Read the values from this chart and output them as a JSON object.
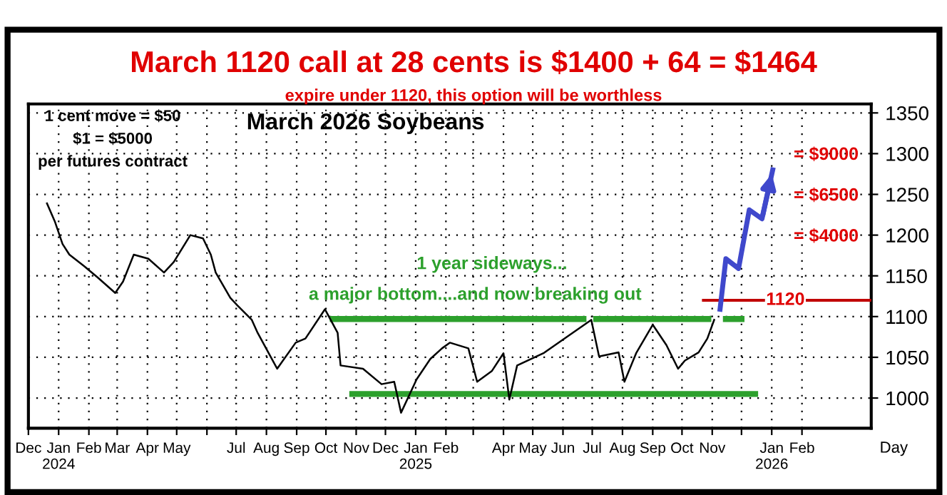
{
  "chart_data": {
    "type": "line",
    "title": "March 1120 call at 28 cents is $1400 + 64 = $1464",
    "subtitle": "expire under 1120, this option will be worthless",
    "xlabel": "Day",
    "x": [
      "2023-12-20",
      "2023-12-28",
      "2024-01-05",
      "2024-01-12",
      "2024-01-27",
      "2024-02-10",
      "2024-02-28",
      "2024-03-07",
      "2024-03-18",
      "2024-04-02",
      "2024-04-18",
      "2024-04-28",
      "2024-05-15",
      "2024-05-28",
      "2024-06-05",
      "2024-06-10",
      "2024-06-25",
      "2024-07-02",
      "2024-07-17",
      "2024-07-23",
      "2024-08-12",
      "2024-08-31",
      "2024-09-10",
      "2024-09-30",
      "2024-10-13",
      "2024-10-16",
      "2024-11-08",
      "2024-11-27",
      "2024-12-10",
      "2024-12-17",
      "2025-01-02",
      "2025-01-16",
      "2025-01-28",
      "2025-02-05",
      "2025-02-24",
      "2025-03-05",
      "2025-03-20",
      "2025-04-01",
      "2025-04-07",
      "2025-04-15",
      "2025-05-12",
      "2025-05-24",
      "2025-06-30",
      "2025-07-08",
      "2025-07-28",
      "2025-08-03",
      "2025-08-15",
      "2025-09-01",
      "2025-09-15",
      "2025-09-27",
      "2025-10-04",
      "2025-10-18",
      "2025-10-27",
      "2025-11-03"
    ],
    "series": [
      {
        "color": "#000000",
        "values": [
          1239,
          1217,
          1189,
          1176,
          1162,
          1148,
          1129,
          1143,
          1176,
          1171,
          1154,
          1167,
          1200,
          1196,
          1176,
          1154,
          1123,
          1114,
          1096,
          1080,
          1036,
          1068,
          1073,
          1109,
          1080,
          1040,
          1036,
          1017,
          1020,
          982,
          1023,
          1048,
          1061,
          1068,
          1061,
          1020,
          1033,
          1055,
          998,
          1040,
          1055,
          1065,
          1096,
          1051,
          1056,
          1020,
          1055,
          1090,
          1065,
          1036,
          1046,
          1056,
          1073,
          1096
        ]
      },
      {
        "type": "line",
        "color": "#2ca02c",
        "x": [
          "2024-10-08",
          "2025-06-22",
          null,
          "2025-07-05",
          "2025-10-28",
          null,
          "2025-11-15",
          "2025-12-01"
        ],
        "values": [
          1097,
          1097,
          null,
          1097,
          1097,
          null,
          1097,
          1097
        ]
      },
      {
        "type": "line",
        "color": "#2ca02c",
        "x": [
          "2024-10-28",
          "2025-12-15"
        ],
        "values": [
          1005,
          1005
        ]
      },
      {
        "type": "line",
        "color": "#c00000",
        "x": [
          "2025-10-23",
          "2026-04-13"
        ],
        "values": [
          1120,
          1120
        ]
      },
      {
        "type": "line",
        "color": "#3f48cc",
        "x": [
          "2025-11-09",
          "2025-11-15",
          "2025-11-28",
          "2025-12-09",
          "2025-12-22",
          "2026-01-02"
        ],
        "values": [
          1109,
          1171,
          1159,
          1231,
          1220,
          1280
        ]
      }
    ],
    "annotations": [
      "1 cent move = $50",
      "$1 = $5000",
      "per futures contract",
      "March 2026 Soybeans",
      "1 year sideways...",
      "a major bottom....and now breaking out",
      {
        "text": "1120",
        "x": "2026-01-15",
        "y": 1120
      },
      "= $9000",
      "= $6500",
      "= $4000"
    ],
    "xlim": [
      "2023-12-01",
      "2026-04-13"
    ],
    "ylim": [
      963,
      1361
    ],
    "xticks": [
      {
        "value": "2023-12-01",
        "label": "Dec"
      },
      {
        "value": "2024-01-01",
        "label": "Jan\n2024"
      },
      {
        "value": "2024-02-01",
        "label": "Feb"
      },
      {
        "value": "2024-03-01",
        "label": "Mar"
      },
      {
        "value": "2024-04-01",
        "label": "Apr"
      },
      {
        "value": "2024-05-01",
        "label": "May"
      },
      {
        "value": "2024-06-01",
        "label": null
      },
      {
        "value": "2024-07-01",
        "label": "Jul"
      },
      {
        "value": "2024-08-01",
        "label": "Aug"
      },
      {
        "value": "2024-09-01",
        "label": "Sep"
      },
      {
        "value": "2024-10-01",
        "label": "Oct"
      },
      {
        "value": "2024-11-01",
        "label": "Nov"
      },
      {
        "value": "2024-12-01",
        "label": "Dec"
      },
      {
        "value": "2025-01-01",
        "label": "Jan\n2025"
      },
      {
        "value": "2025-02-01",
        "label": "Feb"
      },
      {
        "value": "2025-03-01",
        "label": null
      },
      {
        "value": "2025-04-01",
        "label": "Apr"
      },
      {
        "value": "2025-05-01",
        "label": "May"
      },
      {
        "value": "2025-06-01",
        "label": "Jun"
      },
      {
        "value": "2025-07-01",
        "label": "Jul"
      },
      {
        "value": "2025-08-01",
        "label": "Aug"
      },
      {
        "value": "2025-09-01",
        "label": "Sep"
      },
      {
        "value": "2025-10-01",
        "label": "Oct"
      },
      {
        "value": "2025-11-01",
        "label": "Nov"
      },
      {
        "value": "2025-12-01",
        "label": null
      },
      {
        "value": "2026-01-01",
        "label": "Jan\n2026"
      },
      {
        "value": "2026-02-01",
        "label": "Feb"
      }
    ],
    "yticks": [
      1000,
      1050,
      1100,
      1150,
      1200,
      1250,
      1300,
      1350
    ],
    "grid": true,
    "legend": false,
    "marker": "none",
    "line_style": "solid"
  }
}
